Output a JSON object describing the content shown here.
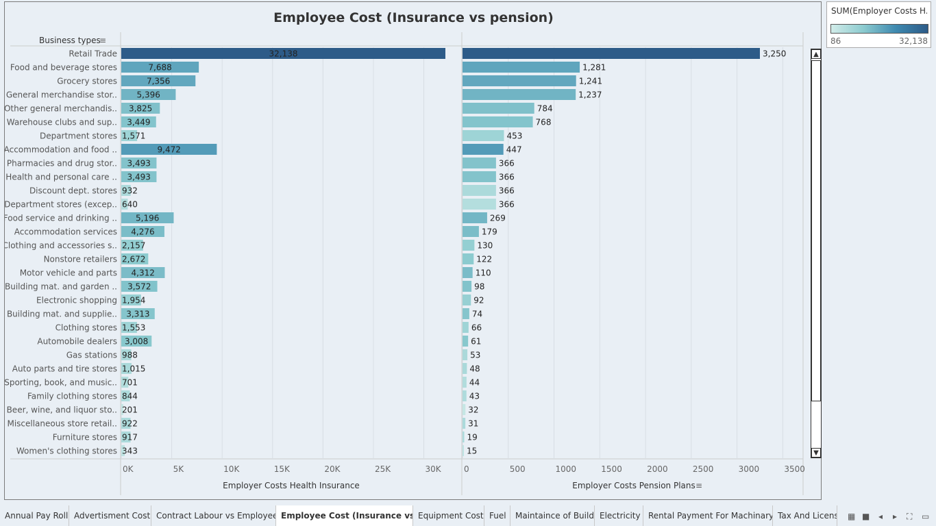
{
  "title": "Employee Cost (Insurance vs pension)",
  "legend": {
    "title": "SUM(Employer Costs H...",
    "min": "86",
    "max": "32,138"
  },
  "tabs": [
    "Annual Pay Roll",
    "Advertisment Cost",
    "Contract Labour vs Employee",
    "Employee Cost (Insurance vs p...",
    "Equipment Cost",
    "Fuel",
    "Maintaince of Build",
    "Electricity",
    "Rental Payment For Machinary",
    "Tax And License"
  ],
  "active_tab": 3,
  "colors": {
    "low": "#d2ece9",
    "mid": "#8ccbcf",
    "high": "#2d5b88",
    "grid": "#d8dee4"
  },
  "chart_data": {
    "type": "bar",
    "orientation": "horizontal",
    "category_header": "Business types",
    "categories": [
      "Retail Trade",
      "Food and beverage stores",
      "Grocery stores",
      "General merchandise stor..",
      "Other general merchandis..",
      "Warehouse clubs and sup..",
      "Department stores",
      "Accommodation and food ..",
      "Pharmacies and drug stor..",
      "Health and personal care ..",
      "Discount dept. stores",
      "Department stores (excep..",
      "Food service and drinking ..",
      "Accommodation services",
      "Clothing and accessories s..",
      "Nonstore retailers",
      "Motor vehicle and parts",
      "Building mat. and garden ..",
      "Electronic shopping",
      "Building mat. and supplie..",
      "Clothing stores",
      "Automobile dealers",
      "Gas stations",
      "Auto parts and tire stores",
      "Sporting, book, and music..",
      "Family clothing stores",
      "Beer, wine, and liquor sto..",
      "Miscellaneous store retail..",
      "Furniture stores",
      "Women's clothing stores"
    ],
    "series": [
      {
        "name": "Employer Costs Health Insurance",
        "values": [
          32138,
          7688,
          7356,
          5396,
          3825,
          3449,
          1571,
          9472,
          3493,
          3493,
          932,
          640,
          5196,
          4276,
          2157,
          2672,
          4312,
          3572,
          1954,
          3313,
          1553,
          3008,
          988,
          1015,
          701,
          844,
          201,
          922,
          917,
          343
        ],
        "labels": [
          "32,138",
          "7,688",
          "7,356",
          "5,396",
          "3,825",
          "3,449",
          "1,571",
          "9,472",
          "3,493",
          "3,493",
          "932",
          "640",
          "5,196",
          "4,276",
          "2,157",
          "2,672",
          "4,312",
          "3,572",
          "1,954",
          "3,313",
          "1,553",
          "3,008",
          "988",
          "1,015",
          "701",
          "844",
          "201",
          "922",
          "917",
          "343"
        ],
        "xlabel": "Employer Costs Health Insurance",
        "xlim": [
          0,
          34000
        ],
        "ticks": [
          0,
          5000,
          10000,
          15000,
          20000,
          25000,
          30000
        ],
        "tick_labels": [
          "0K",
          "5K",
          "10K",
          "15K",
          "20K",
          "25K",
          "30K"
        ]
      },
      {
        "name": "Employer Costs Pension Plans",
        "values": [
          3250,
          1281,
          1241,
          1237,
          784,
          768,
          453,
          447,
          366,
          366,
          366,
          366,
          269,
          179,
          130,
          122,
          110,
          98,
          92,
          74,
          66,
          61,
          53,
          48,
          44,
          43,
          32,
          31,
          19,
          15
        ],
        "labels": [
          "3,250",
          "1,281",
          "1,241",
          "1,237",
          "784",
          "768",
          "453",
          "447",
          "366",
          "366",
          "366",
          "366",
          "269",
          "179",
          "130",
          "122",
          "110",
          "98",
          "92",
          "74",
          "66",
          "61",
          "53",
          "48",
          "44",
          "43",
          "32",
          "31",
          "19",
          "15"
        ],
        "xlabel": "Employer Costs Pension Plans",
        "xlim": [
          0,
          3700
        ],
        "ticks": [
          0,
          500,
          1000,
          1500,
          2000,
          2500,
          3000,
          3500
        ],
        "tick_labels": [
          "0",
          "500",
          "1000",
          "1500",
          "2000",
          "2500",
          "3000",
          "3500"
        ]
      }
    ],
    "color_by": "SUM(Employer Costs Health Insurance)",
    "color_range": [
      86,
      32138
    ],
    "grid": true
  }
}
